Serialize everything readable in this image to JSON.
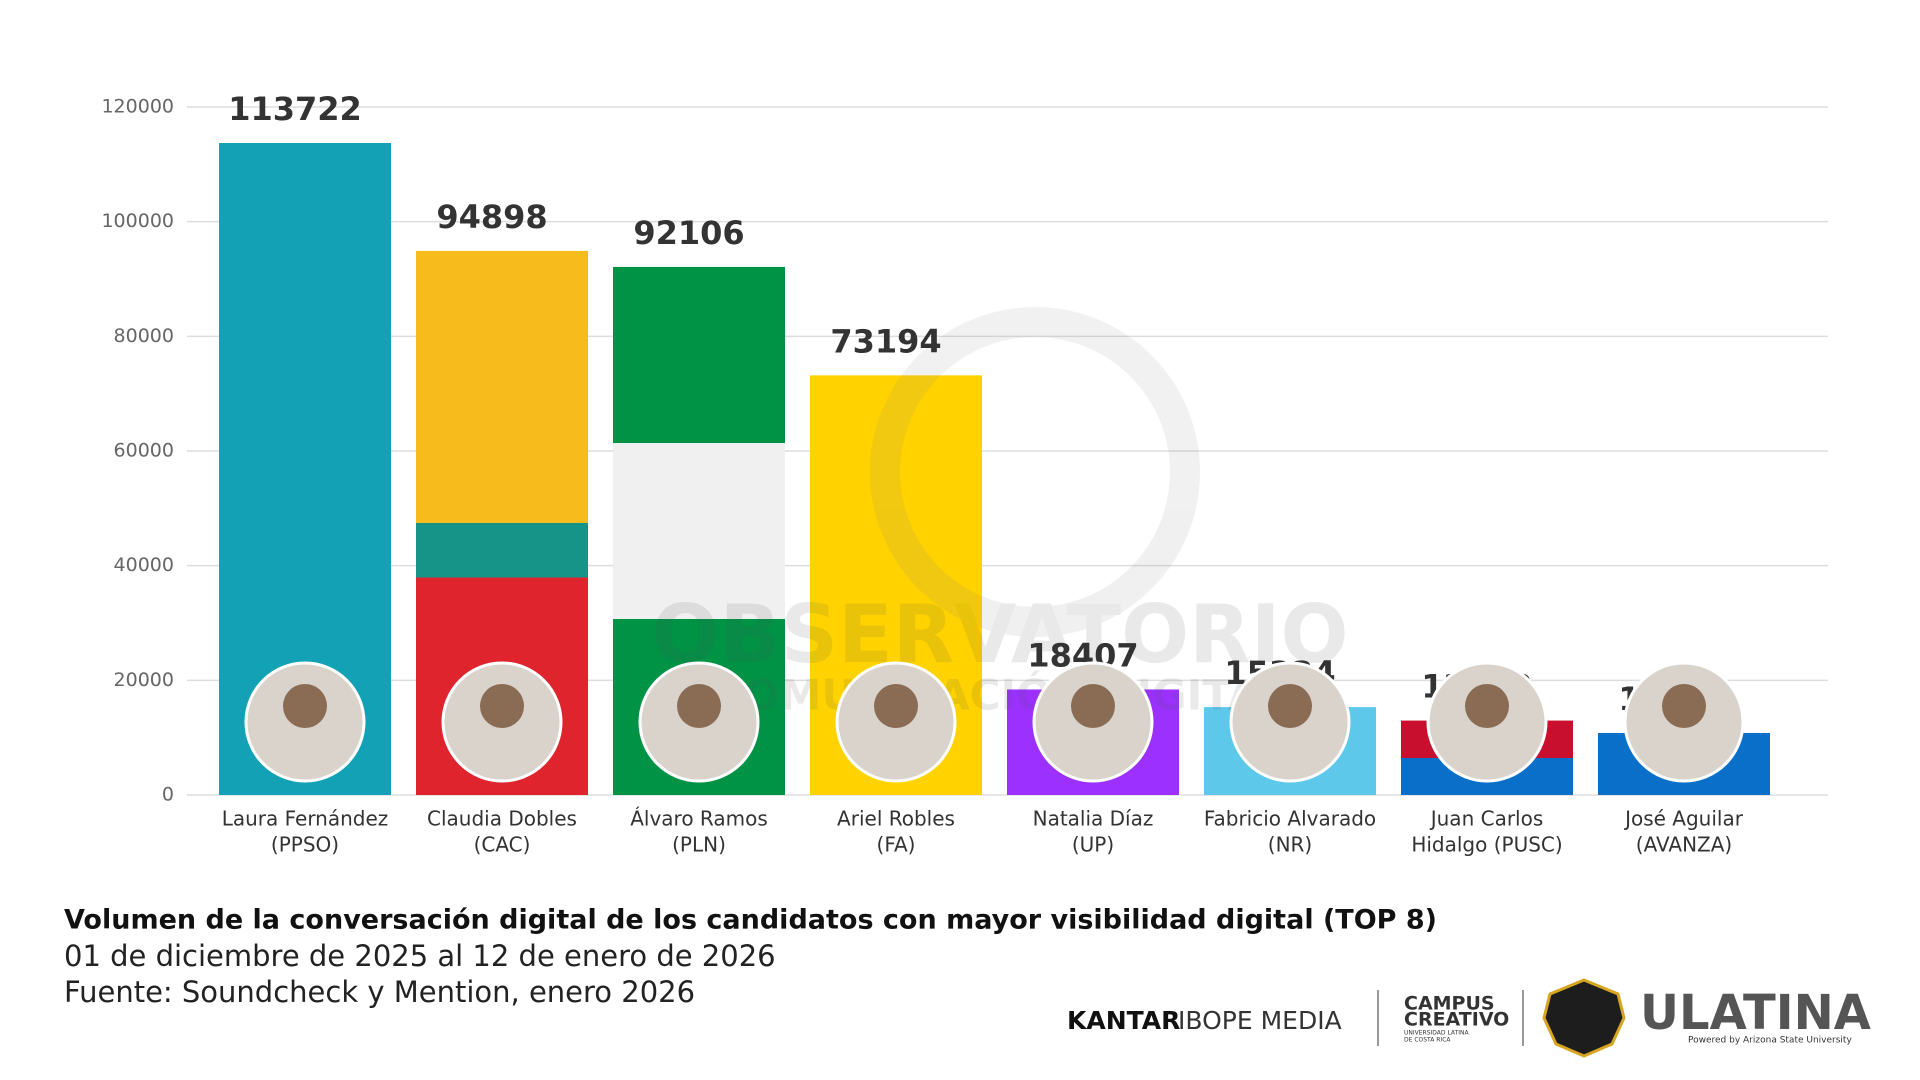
{
  "chart_data": {
    "type": "bar",
    "title": "Volumen de la conversación digital de los candidatos con mayor visibilidad digital (TOP 8)",
    "subtitle": "01 de diciembre de 2025 al 12 de enero de 2026",
    "source": "Fuente: Soundcheck y Mention, enero 2026",
    "categories": [
      [
        "Laura Fernández",
        "(PPSO)"
      ],
      [
        "Claudia Dobles",
        "(CAC)"
      ],
      [
        "Álvaro Ramos",
        "(PLN)"
      ],
      [
        "Ariel Robles",
        "(FA)"
      ],
      [
        "Natalia Díaz",
        "(UP)"
      ],
      [
        "Fabricio Alvarado",
        "(NR)"
      ],
      [
        "Juan Carlos",
        "Hidalgo (PUSC)"
      ],
      [
        "José Aguilar",
        "(AVANZA)"
      ]
    ],
    "values": [
      113722,
      94898,
      92106,
      73194,
      18407,
      15334,
      12982,
      10821
    ],
    "colors": [
      "#12a1b5",
      "#f8bb1c",
      "#009245",
      "#ffd200",
      "#9b30ff",
      "#5ec8ea",
      "#0a6fc8",
      "#0a6fc8"
    ],
    "ylim": [
      0,
      120000
    ],
    "yticks": [
      0,
      20000,
      40000,
      60000,
      80000,
      100000,
      120000
    ],
    "grid": true,
    "watermark": [
      "OBSERVATORIO",
      "COMUNICACIÓN DIGITAL"
    ],
    "logos": {
      "kantar": "KANTAR",
      "ibope": "IBOPE MEDIA",
      "campus": [
        "CAMPUS",
        "CREATIVO"
      ],
      "campus_sub": [
        "UNIVERSIDAD LATINA",
        "DE COSTA RICA"
      ],
      "ulatina": "ULATINA",
      "asu": "Powered by Arizona State University"
    }
  }
}
